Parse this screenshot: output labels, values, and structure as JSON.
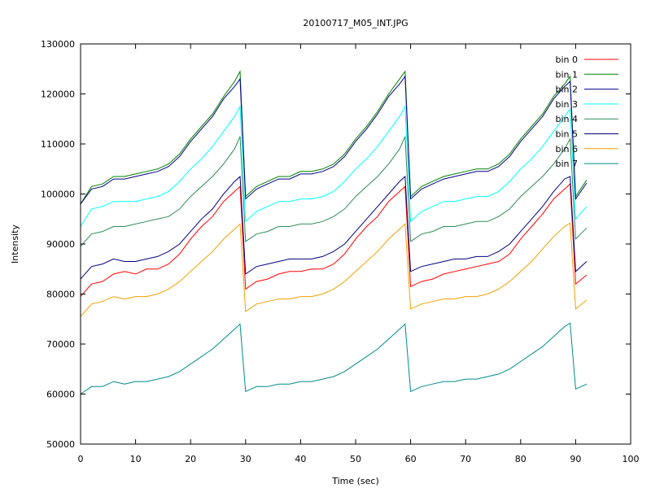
{
  "chart_data": {
    "type": "line",
    "title": "20100717_M05_INT.JPG",
    "xlabel": "Time (sec)",
    "ylabel": "Intensity",
    "xlim": [
      0,
      100
    ],
    "ylim": [
      50000,
      130000
    ],
    "x_ticks": [
      0,
      10,
      20,
      30,
      40,
      50,
      60,
      70,
      80,
      90,
      100
    ],
    "y_ticks": [
      50000,
      60000,
      70000,
      80000,
      90000,
      100000,
      110000,
      120000,
      130000
    ],
    "grid": false,
    "legend_position": "top-right",
    "x": [
      0,
      2,
      4,
      6,
      8,
      10,
      12,
      14,
      16,
      18,
      20,
      22,
      24,
      26,
      28,
      29,
      30,
      32,
      34,
      36,
      38,
      40,
      42,
      44,
      46,
      48,
      50,
      52,
      54,
      56,
      58,
      59,
      60,
      62,
      64,
      66,
      68,
      70,
      72,
      74,
      76,
      78,
      80,
      82,
      84,
      86,
      88,
      89,
      90,
      92
    ],
    "series": [
      {
        "name": "bin 0",
        "color": "#ff0000",
        "values": [
          79500,
          82000,
          82500,
          84000,
          84500,
          84000,
          85000,
          85000,
          86000,
          88000,
          91000,
          93500,
          95500,
          98500,
          100500,
          101500,
          81000,
          82500,
          83000,
          84000,
          84500,
          84500,
          85000,
          85000,
          86000,
          88000,
          91000,
          93500,
          95500,
          98500,
          100500,
          101500,
          81500,
          82500,
          83000,
          84000,
          84500,
          85000,
          85500,
          86000,
          86500,
          88000,
          91000,
          93500,
          96000,
          99000,
          101000,
          102000,
          82000,
          83800
        ]
      },
      {
        "name": "bin 1",
        "color": "#008000",
        "values": [
          98000,
          101500,
          102000,
          103500,
          103500,
          104000,
          104500,
          105000,
          106000,
          108000,
          111000,
          113500,
          116000,
          119500,
          122500,
          124500,
          99500,
          101500,
          102500,
          103500,
          103500,
          104500,
          104500,
          105000,
          106000,
          108000,
          111000,
          113500,
          116500,
          120000,
          123000,
          124500,
          99500,
          101500,
          102500,
          103500,
          104000,
          104500,
          105000,
          105000,
          106000,
          108000,
          111000,
          113500,
          116000,
          119500,
          122000,
          123500,
          99500,
          102800
        ]
      },
      {
        "name": "bin 2",
        "color": "#00008b",
        "values": [
          98000,
          101000,
          101500,
          103000,
          103000,
          103500,
          104000,
          104500,
          105500,
          107500,
          110500,
          113000,
          115500,
          119000,
          121500,
          123000,
          99000,
          101000,
          102000,
          103000,
          103000,
          104000,
          104000,
          104500,
          105500,
          107500,
          110500,
          113000,
          116000,
          119500,
          122000,
          123500,
          99000,
          101000,
          102000,
          103000,
          103500,
          104000,
          104500,
          104500,
          105500,
          107500,
          110500,
          113000,
          115500,
          119000,
          121500,
          122500,
          99000,
          102200
        ]
      },
      {
        "name": "bin 3",
        "color": "#00ffff",
        "values": [
          93500,
          97000,
          97500,
          98500,
          98500,
          98500,
          99000,
          99500,
          100500,
          102500,
          105000,
          107000,
          109500,
          112500,
          115500,
          117500,
          94500,
          96500,
          97500,
          98500,
          98500,
          99000,
          99000,
          99500,
          100500,
          102500,
          105000,
          107000,
          109500,
          112500,
          115500,
          117500,
          94500,
          96500,
          97500,
          98500,
          98500,
          99000,
          99500,
          99500,
          100500,
          102500,
          105000,
          107000,
          109500,
          112500,
          115500,
          117000,
          95000,
          97500
        ]
      },
      {
        "name": "bin 4",
        "color": "#2e8b57",
        "values": [
          89500,
          92000,
          92500,
          93500,
          93500,
          94000,
          94500,
          95000,
          95500,
          97000,
          99500,
          101500,
          103500,
          106000,
          109000,
          111500,
          90500,
          92000,
          92500,
          93500,
          93500,
          94000,
          94000,
          94500,
          95500,
          97000,
          99500,
          101500,
          103500,
          106000,
          109000,
          111500,
          90500,
          92000,
          92500,
          93500,
          93500,
          94000,
          94500,
          94500,
          95500,
          97000,
          99500,
          101500,
          103500,
          106000,
          109000,
          111000,
          91000,
          93200
        ]
      },
      {
        "name": "bin 5",
        "color": "#000080",
        "values": [
          83000,
          85500,
          86000,
          87000,
          86500,
          86500,
          87000,
          87500,
          88500,
          90000,
          92500,
          95000,
          97000,
          100000,
          102500,
          103500,
          84000,
          85500,
          86000,
          86500,
          87000,
          87000,
          87000,
          87500,
          88500,
          90000,
          92500,
          95000,
          97500,
          100000,
          102500,
          103500,
          84500,
          85500,
          86000,
          86500,
          87000,
          87000,
          87500,
          87500,
          88500,
          90000,
          92500,
          95000,
          97500,
          100500,
          103000,
          103500,
          84500,
          86500
        ]
      },
      {
        "name": "bin 6",
        "color": "#f0a000",
        "values": [
          75500,
          78000,
          78500,
          79500,
          79000,
          79500,
          79500,
          80000,
          81000,
          82500,
          84500,
          86500,
          88500,
          91000,
          93000,
          94000,
          76500,
          78000,
          78500,
          79000,
          79000,
          79500,
          79500,
          80000,
          81000,
          82500,
          84500,
          86500,
          88500,
          91000,
          93000,
          94000,
          77000,
          78000,
          78500,
          79000,
          79000,
          79500,
          79500,
          80000,
          81000,
          82500,
          84500,
          86500,
          89000,
          91500,
          93500,
          94200,
          77000,
          78800
        ]
      },
      {
        "name": "bin 7",
        "color": "#008b8b",
        "values": [
          60000,
          61500,
          61500,
          62500,
          62000,
          62500,
          62500,
          63000,
          63500,
          64500,
          66000,
          67500,
          69000,
          71000,
          73000,
          74000,
          60500,
          61500,
          61500,
          62000,
          62000,
          62500,
          62500,
          63000,
          63500,
          64500,
          66000,
          67500,
          69000,
          71000,
          73000,
          74000,
          60500,
          61500,
          62000,
          62500,
          62500,
          63000,
          63000,
          63500,
          64000,
          65000,
          66500,
          68000,
          69500,
          71500,
          73500,
          74200,
          61000,
          62000
        ]
      }
    ]
  }
}
